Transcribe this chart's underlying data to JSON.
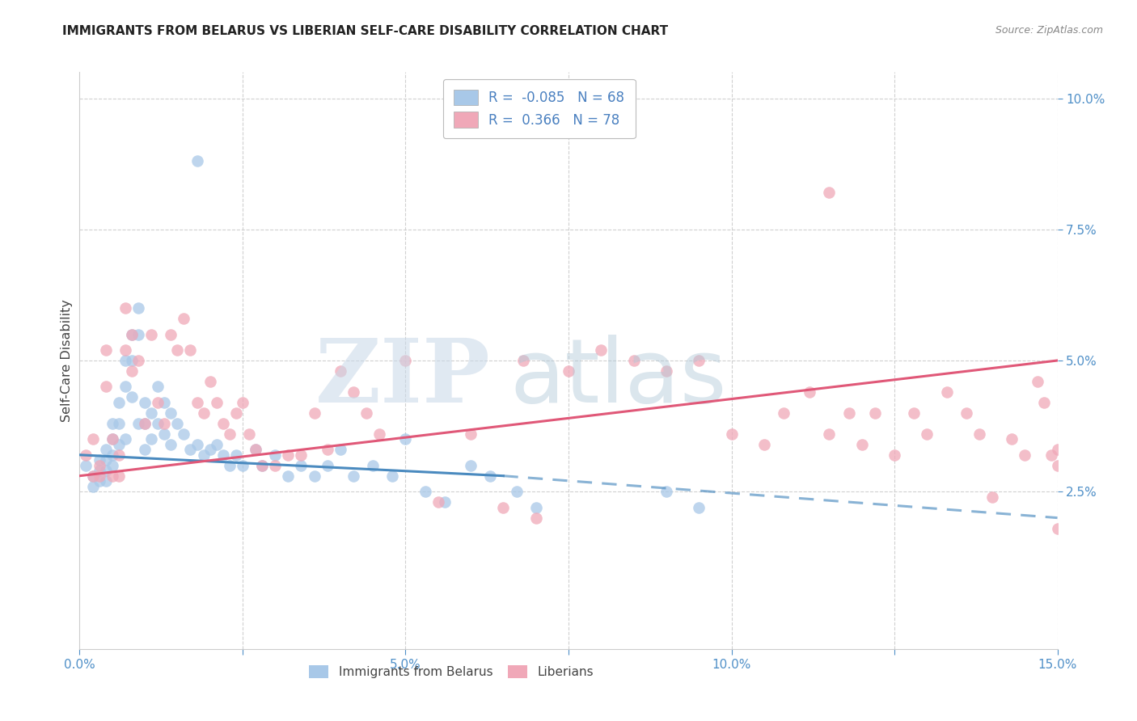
{
  "title": "IMMIGRANTS FROM BELARUS VS LIBERIAN SELF-CARE DISABILITY CORRELATION CHART",
  "source": "Source: ZipAtlas.com",
  "ylabel": "Self-Care Disability",
  "xlim": [
    0.0,
    0.15
  ],
  "ylim": [
    -0.005,
    0.105
  ],
  "xtick_vals": [
    0.0,
    0.025,
    0.05,
    0.075,
    0.1,
    0.125,
    0.15
  ],
  "xticklabels": [
    "0.0%",
    "",
    "5.0%",
    "",
    "10.0%",
    "",
    "15.0%"
  ],
  "ytick_vals": [
    0.025,
    0.05,
    0.075,
    0.1
  ],
  "yticklabels": [
    "2.5%",
    "5.0%",
    "7.5%",
    "10.0%"
  ],
  "blue_R": -0.085,
  "blue_N": 68,
  "pink_R": 0.366,
  "pink_N": 78,
  "blue_color": "#a8c8e8",
  "pink_color": "#f0a8b8",
  "blue_line_color": "#4a8abf",
  "pink_line_color": "#e05878",
  "grid_color": "#d0d0d0",
  "background_color": "#ffffff",
  "blue_line_x_start": 0.0,
  "blue_line_x_solid_end": 0.065,
  "blue_line_x_end": 0.15,
  "blue_line_y_start": 0.032,
  "blue_line_y_solid_end": 0.028,
  "blue_line_y_end": 0.02,
  "pink_line_x_start": 0.0,
  "pink_line_x_end": 0.15,
  "pink_line_y_start": 0.028,
  "pink_line_y_end": 0.05,
  "blue_scatter_x": [
    0.001,
    0.002,
    0.002,
    0.003,
    0.003,
    0.003,
    0.004,
    0.004,
    0.004,
    0.004,
    0.005,
    0.005,
    0.005,
    0.005,
    0.006,
    0.006,
    0.006,
    0.007,
    0.007,
    0.007,
    0.008,
    0.008,
    0.008,
    0.009,
    0.009,
    0.009,
    0.01,
    0.01,
    0.01,
    0.011,
    0.011,
    0.012,
    0.012,
    0.013,
    0.013,
    0.014,
    0.014,
    0.015,
    0.016,
    0.017,
    0.018,
    0.019,
    0.02,
    0.021,
    0.022,
    0.023,
    0.024,
    0.025,
    0.027,
    0.028,
    0.03,
    0.032,
    0.034,
    0.036,
    0.038,
    0.04,
    0.042,
    0.045,
    0.048,
    0.05,
    0.053,
    0.056,
    0.06,
    0.063,
    0.067,
    0.07,
    0.09,
    0.095
  ],
  "blue_scatter_y": [
    0.03,
    0.028,
    0.026,
    0.031,
    0.029,
    0.027,
    0.033,
    0.031,
    0.029,
    0.027,
    0.038,
    0.035,
    0.032,
    0.03,
    0.042,
    0.038,
    0.034,
    0.05,
    0.045,
    0.035,
    0.055,
    0.05,
    0.043,
    0.06,
    0.055,
    0.038,
    0.042,
    0.038,
    0.033,
    0.04,
    0.035,
    0.045,
    0.038,
    0.042,
    0.036,
    0.04,
    0.034,
    0.038,
    0.036,
    0.033,
    0.034,
    0.032,
    0.033,
    0.034,
    0.032,
    0.03,
    0.032,
    0.03,
    0.033,
    0.03,
    0.032,
    0.028,
    0.03,
    0.028,
    0.03,
    0.033,
    0.028,
    0.03,
    0.028,
    0.035,
    0.025,
    0.023,
    0.03,
    0.028,
    0.025,
    0.022,
    0.025,
    0.022
  ],
  "blue_outlier_x": [
    0.018
  ],
  "blue_outlier_y": [
    0.088
  ],
  "pink_scatter_x": [
    0.001,
    0.002,
    0.002,
    0.003,
    0.003,
    0.004,
    0.004,
    0.005,
    0.005,
    0.006,
    0.006,
    0.007,
    0.007,
    0.008,
    0.008,
    0.009,
    0.01,
    0.011,
    0.012,
    0.013,
    0.014,
    0.015,
    0.016,
    0.017,
    0.018,
    0.019,
    0.02,
    0.021,
    0.022,
    0.023,
    0.024,
    0.025,
    0.026,
    0.027,
    0.028,
    0.03,
    0.032,
    0.034,
    0.036,
    0.038,
    0.04,
    0.042,
    0.044,
    0.046,
    0.05,
    0.055,
    0.06,
    0.065,
    0.068,
    0.07,
    0.075,
    0.08,
    0.085,
    0.09,
    0.095,
    0.1,
    0.105,
    0.108,
    0.112,
    0.115,
    0.118,
    0.12,
    0.122,
    0.125,
    0.128,
    0.13,
    0.133,
    0.136,
    0.138,
    0.14,
    0.143,
    0.145,
    0.147,
    0.148,
    0.149,
    0.15,
    0.15,
    0.15
  ],
  "pink_scatter_y": [
    0.032,
    0.035,
    0.028,
    0.03,
    0.028,
    0.052,
    0.045,
    0.035,
    0.028,
    0.032,
    0.028,
    0.06,
    0.052,
    0.055,
    0.048,
    0.05,
    0.038,
    0.055,
    0.042,
    0.038,
    0.055,
    0.052,
    0.058,
    0.052,
    0.042,
    0.04,
    0.046,
    0.042,
    0.038,
    0.036,
    0.04,
    0.042,
    0.036,
    0.033,
    0.03,
    0.03,
    0.032,
    0.032,
    0.04,
    0.033,
    0.048,
    0.044,
    0.04,
    0.036,
    0.05,
    0.023,
    0.036,
    0.022,
    0.05,
    0.02,
    0.048,
    0.052,
    0.05,
    0.048,
    0.05,
    0.036,
    0.034,
    0.04,
    0.044,
    0.036,
    0.04,
    0.034,
    0.04,
    0.032,
    0.04,
    0.036,
    0.044,
    0.04,
    0.036,
    0.024,
    0.035,
    0.032,
    0.046,
    0.042,
    0.032,
    0.018,
    0.033,
    0.03
  ],
  "pink_outlier_x": [
    0.115
  ],
  "pink_outlier_y": [
    0.082
  ]
}
